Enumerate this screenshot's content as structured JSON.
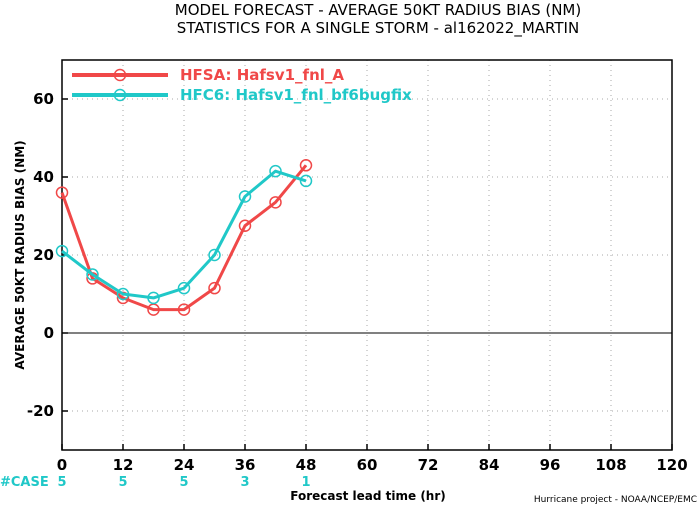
{
  "chart_data": {
    "type": "line",
    "title_line1": "MODEL FORECAST - AVERAGE 50KT RADIUS BIAS (NM)",
    "title_line2": "STATISTICS FOR A SINGLE STORM - al162022_MARTIN",
    "xlabel": "Forecast lead time (hr)",
    "ylabel": "AVERAGE 50KT RADIUS BIAS (NM)",
    "xlim": [
      0,
      120
    ],
    "ylim": [
      -30,
      70
    ],
    "xticks": [
      0,
      12,
      24,
      36,
      48,
      60,
      72,
      84,
      96,
      108,
      120
    ],
    "yticks": [
      -20,
      0,
      20,
      40,
      60
    ],
    "grid": true,
    "zero_line": true,
    "legend_position": "top-left",
    "series": [
      {
        "name": "HFSA: Hafsv1_fnl_A",
        "color": "#f04848",
        "x": [
          0,
          6,
          12,
          18,
          24,
          30,
          36,
          42,
          48
        ],
        "y": [
          36,
          14,
          9,
          6,
          6,
          11.5,
          27.5,
          33.5,
          43
        ]
      },
      {
        "name": "HFC6: Hafsv1_fnl_bf6bugfix",
        "color": "#20c8c8",
        "x": [
          0,
          6,
          12,
          18,
          24,
          30,
          36,
          42,
          48
        ],
        "y": [
          21,
          15,
          10,
          9,
          11.5,
          20,
          35,
          41.5,
          39
        ]
      }
    ],
    "case_label": "#CASE",
    "case_color": "#20c8c8",
    "cases": [
      {
        "x": 0,
        "count": "5"
      },
      {
        "x": 12,
        "count": "5"
      },
      {
        "x": 24,
        "count": "5"
      },
      {
        "x": 36,
        "count": "3"
      },
      {
        "x": 48,
        "count": "1"
      }
    ],
    "credit": "Hurricane project - NOAA/NCEP/EMC"
  }
}
